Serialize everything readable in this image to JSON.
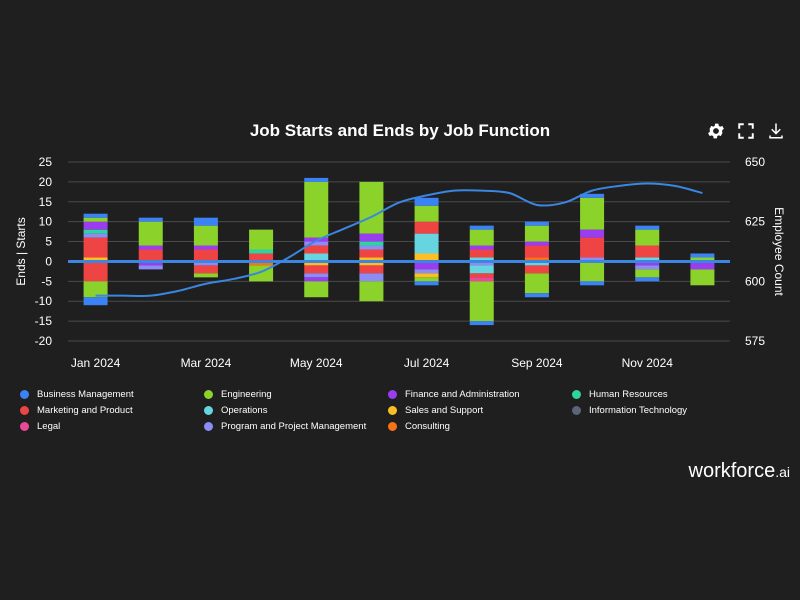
{
  "title": "Job Starts and Ends by Job Function",
  "toolbar": {
    "settings": "settings-icon",
    "fullscreen": "fullscreen-icon",
    "download": "download-icon"
  },
  "brand": {
    "name": "workforce",
    "suffix": ".ai"
  },
  "colors": {
    "background": "#1f1f1f",
    "grid": "#4a4a4a",
    "zero_line": "#3a86e0",
    "headcount_line": "#3a86e0",
    "Business Management": "#3b82f6",
    "Engineering": "#8bd22a",
    "Finance and Administration": "#9a3cf0",
    "Human Resources": "#2ed3a0",
    "Marketing and Product": "#ef4444",
    "Operations": "#67d5e0",
    "Sales and Support": "#fbbf24",
    "Information Technology": "#5b6478",
    "Legal": "#ec4899",
    "Program and Project Management": "#8b8cf4",
    "Consulting": "#f97316"
  },
  "chart_data": {
    "type": "bar",
    "stacked": true,
    "title": "Job Starts and Ends by Job Function",
    "ylabel": "Ends | Starts",
    "y2label": "Employee Count",
    "ylim": [
      -20,
      25
    ],
    "y2lim": [
      575,
      650
    ],
    "yticks": [
      "25",
      "20",
      "15",
      "10",
      "5",
      "0",
      "-5",
      "-10",
      "-15",
      "-20"
    ],
    "y2ticks": [
      "650",
      "625",
      "600",
      "575"
    ],
    "x_tick_labels": [
      "Jan 2024",
      "Mar 2024",
      "May 2024",
      "Jul 2024",
      "Sep 2024",
      "Nov 2024"
    ],
    "x_tick_indices": [
      0,
      2,
      4,
      6,
      8,
      10
    ],
    "categories": [
      "2024-01",
      "2024-02",
      "2024-03",
      "2024-04",
      "2024-05",
      "2024-06",
      "2024-07",
      "2024-08",
      "2024-09",
      "2024-10",
      "2024-11",
      "2024-12"
    ],
    "legend_position": "bottom",
    "legend": [
      "Business Management",
      "Engineering",
      "Finance and Administration",
      "Human Resources",
      "Marketing and Product",
      "Operations",
      "Sales and Support",
      "Information Technology",
      "Legal",
      "Program and Project Management",
      "Consulting"
    ],
    "starts": [
      [
        [
          "Sales and Support",
          1
        ],
        [
          "Marketing and Product",
          5
        ],
        [
          "Program and Project Management",
          1
        ],
        [
          "Human Resources",
          1
        ],
        [
          "Finance and Administration",
          2
        ],
        [
          "Engineering",
          1
        ],
        [
          "Business Management",
          1
        ]
      ],
      [
        [
          "Marketing and Product",
          3
        ],
        [
          "Finance and Administration",
          1
        ],
        [
          "Engineering",
          6
        ],
        [
          "Business Management",
          1
        ]
      ],
      [
        [
          "Marketing and Product",
          3
        ],
        [
          "Finance and Administration",
          1
        ],
        [
          "Engineering",
          5
        ],
        [
          "Business Management",
          2
        ]
      ],
      [
        [
          "Marketing and Product",
          2
        ],
        [
          "Human Resources",
          1
        ],
        [
          "Engineering",
          5
        ]
      ],
      [
        [
          "Operations",
          2
        ],
        [
          "Marketing and Product",
          2
        ],
        [
          "Program and Project Management",
          1
        ],
        [
          "Finance and Administration",
          1
        ],
        [
          "Engineering",
          14
        ],
        [
          "Business Management",
          1
        ]
      ],
      [
        [
          "Sales and Support",
          1
        ],
        [
          "Marketing and Product",
          2
        ],
        [
          "Program and Project Management",
          1
        ],
        [
          "Human Resources",
          1
        ],
        [
          "Finance and Administration",
          2
        ],
        [
          "Engineering",
          13
        ]
      ],
      [
        [
          "Sales and Support",
          2
        ],
        [
          "Operations",
          5
        ],
        [
          "Marketing and Product",
          3
        ],
        [
          "Engineering",
          4
        ],
        [
          "Business Management",
          2
        ]
      ],
      [
        [
          "Operations",
          1
        ],
        [
          "Marketing and Product",
          2
        ],
        [
          "Finance and Administration",
          1
        ],
        [
          "Engineering",
          4
        ],
        [
          "Business Management",
          1
        ]
      ],
      [
        [
          "Consulting",
          1
        ],
        [
          "Marketing and Product",
          3
        ],
        [
          "Finance and Administration",
          1
        ],
        [
          "Engineering",
          4
        ],
        [
          "Business Management",
          1
        ]
      ],
      [
        [
          "Program and Project Management",
          1
        ],
        [
          "Marketing and Product",
          5
        ],
        [
          "Finance and Administration",
          2
        ],
        [
          "Engineering",
          8
        ],
        [
          "Business Management",
          1
        ]
      ],
      [
        [
          "Operations",
          1
        ],
        [
          "Marketing and Product",
          3
        ],
        [
          "Engineering",
          4
        ],
        [
          "Business Management",
          1
        ]
      ],
      [
        [
          "Engineering",
          1
        ],
        [
          "Business Management",
          1
        ]
      ]
    ],
    "ends": [
      [
        [
          "Marketing and Product",
          5
        ],
        [
          "Engineering",
          4
        ],
        [
          "Business Management",
          2
        ]
      ],
      [
        [
          "Finance and Administration",
          1
        ],
        [
          "Program and Project Management",
          1
        ]
      ],
      [
        [
          "Program and Project Management",
          1
        ],
        [
          "Marketing and Product",
          2
        ],
        [
          "Engineering",
          1
        ]
      ],
      [
        [
          "Consulting",
          1
        ],
        [
          "Engineering",
          4
        ]
      ],
      [
        [
          "Sales and Support",
          1
        ],
        [
          "Marketing and Product",
          2
        ],
        [
          "Program and Project Management",
          1
        ],
        [
          "Finance and Administration",
          1
        ],
        [
          "Engineering",
          4
        ]
      ],
      [
        [
          "Sales and Support",
          1
        ],
        [
          "Marketing and Product",
          2
        ],
        [
          "Program and Project Management",
          2
        ],
        [
          "Engineering",
          5
        ]
      ],
      [
        [
          "Finance and Administration",
          2
        ],
        [
          "Program and Project Management",
          1
        ],
        [
          "Sales and Support",
          1
        ],
        [
          "Engineering",
          1
        ],
        [
          "Business Management",
          1
        ]
      ],
      [
        [
          "Program and Project Management",
          1
        ],
        [
          "Operations",
          2
        ],
        [
          "Marketing and Product",
          1
        ],
        [
          "Legal",
          1
        ],
        [
          "Engineering",
          10
        ],
        [
          "Business Management",
          1
        ]
      ],
      [
        [
          "Operations",
          1
        ],
        [
          "Marketing and Product",
          2
        ],
        [
          "Engineering",
          5
        ],
        [
          "Business Management",
          1
        ]
      ],
      [
        [
          "Engineering",
          5
        ],
        [
          "Business Management",
          1
        ]
      ],
      [
        [
          "Finance and Administration",
          1
        ],
        [
          "Program and Project Management",
          1
        ],
        [
          "Engineering",
          2
        ],
        [
          "Business Management",
          1
        ]
      ],
      [
        [
          "Finance and Administration",
          2
        ],
        [
          "Engineering",
          4
        ]
      ]
    ],
    "headcount_series": {
      "name": "Employee Count",
      "x": [
        0,
        0.5,
        1,
        1.5,
        2,
        2.5,
        3,
        3.5,
        4,
        4.5,
        5,
        5.5,
        6,
        6.5,
        7,
        7.5,
        8,
        8.5,
        9,
        9.5,
        10,
        10.5,
        11
      ],
      "values": [
        594,
        594,
        594,
        596,
        599,
        601,
        604,
        610,
        617,
        622,
        627,
        633,
        636,
        638,
        638,
        637,
        632,
        633,
        638,
        640,
        641,
        640,
        637
      ]
    }
  }
}
